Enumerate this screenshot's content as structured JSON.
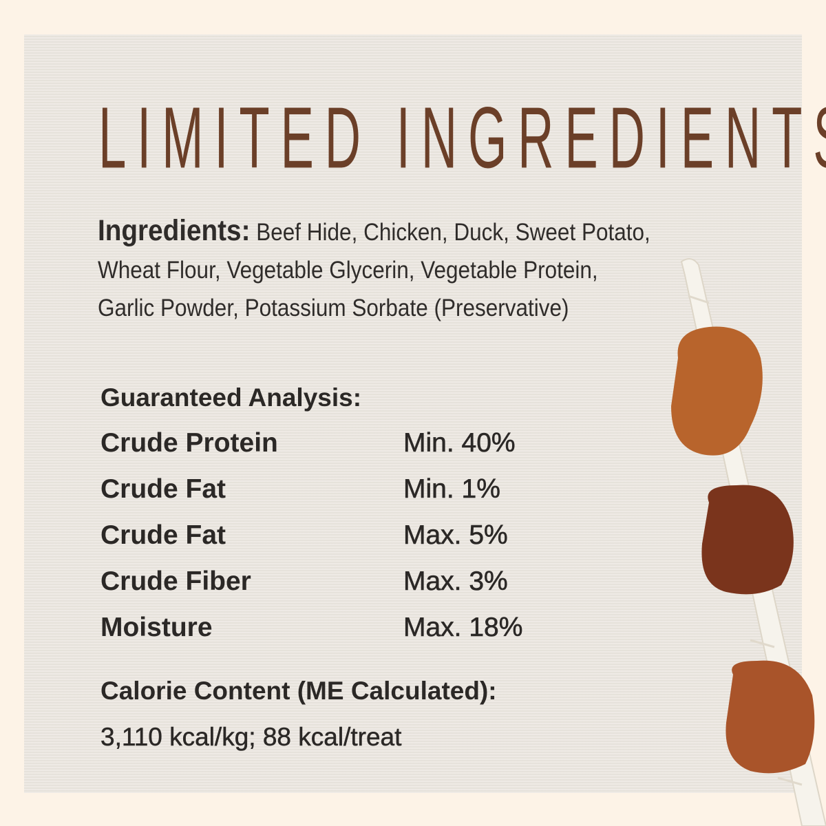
{
  "title": "LIMITED INGREDIENTS",
  "ingredients": {
    "label": "Ingredients:",
    "text": "Beef Hide, Chicken, Duck, Sweet Potato, Wheat Flour, Vegetable Glycerin, Vegetable Protein, Garlic Powder, Potassium Sorbate (Preservative)"
  },
  "analysis": {
    "title": "Guaranteed Analysis:",
    "rows": [
      {
        "name": "Crude Protein",
        "value": "Min. 40%"
      },
      {
        "name": "Crude Fat",
        "value": "Min. 1%"
      },
      {
        "name": "Crude Fat",
        "value": "Max. 5%"
      },
      {
        "name": "Crude Fiber",
        "value": "Max. 3%"
      },
      {
        "name": "Moisture",
        "value": "Max. 18%"
      }
    ]
  },
  "calorie": {
    "title": "Calorie Content (ME Calculated):",
    "value": "3,110 kcal/kg; 88 kcal/treat"
  },
  "colors": {
    "background": "#fdf3e7",
    "panel": "#ebe6df",
    "title": "#6b3f28",
    "text": "#2b2826"
  }
}
